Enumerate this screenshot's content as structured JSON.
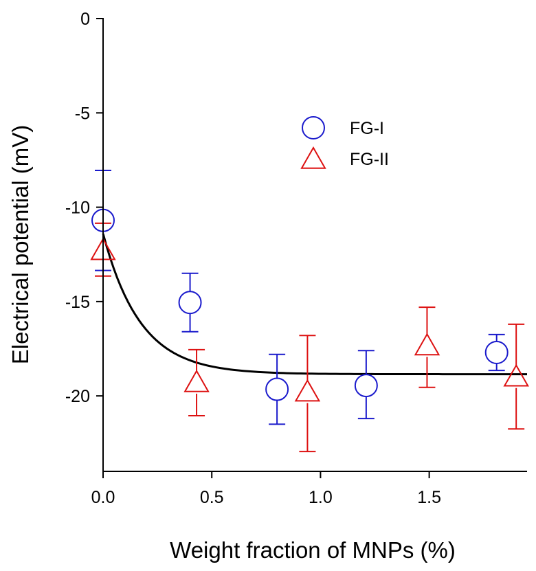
{
  "chart_data": {
    "type": "scatter",
    "title": "",
    "xlabel": "Weight fraction of MNPs (%)",
    "ylabel": "Electrical potential (mV)",
    "xlim": [
      0,
      1.95
    ],
    "ylim": [
      -24,
      0
    ],
    "x_ticks": [
      "0.0",
      "0.5",
      "1.0",
      "1.5"
    ],
    "x_tick_values": [
      0,
      0.5,
      1.0,
      1.5
    ],
    "y_ticks": [
      "0",
      "-5",
      "-10",
      "-15",
      "-20"
    ],
    "y_tick_values": [
      0,
      -5,
      -10,
      -15,
      -20
    ],
    "grid": false,
    "legend": {
      "position": "upper-center",
      "entries": [
        {
          "label": "FG-I",
          "marker": "circle",
          "color": "#1a1acc"
        },
        {
          "label": "FG-II",
          "marker": "triangle",
          "color": "#dd1111"
        }
      ]
    },
    "series": [
      {
        "name": "FG-I",
        "marker": "circle",
        "color": "#1a1acc",
        "x": [
          0.0,
          0.4,
          0.8,
          1.21,
          1.81
        ],
        "y": [
          -10.7,
          -15.05,
          -19.65,
          -19.45,
          -17.7
        ],
        "err_upper": [
          2.65,
          1.55,
          1.85,
          1.85,
          0.95
        ],
        "err_lower": [
          2.65,
          1.55,
          1.85,
          1.75,
          0.95
        ]
      },
      {
        "name": "FG-II",
        "marker": "triangle",
        "color": "#dd1111",
        "x": [
          0.0,
          0.43,
          0.94,
          1.49,
          1.9
        ],
        "y": [
          -12.3,
          -19.3,
          -19.8,
          -17.35,
          -19.0
        ],
        "err_upper": [
          1.45,
          1.75,
          3.0,
          2.05,
          2.8
        ],
        "err_lower": [
          1.35,
          1.75,
          3.15,
          2.2,
          2.75
        ]
      }
    ],
    "fit_curve": {
      "name": "fit",
      "color": "#000000",
      "y_start": -11.4,
      "y_plateau": -18.85,
      "decay_rate": 5.8,
      "x_range": [
        0,
        1.95
      ]
    }
  }
}
